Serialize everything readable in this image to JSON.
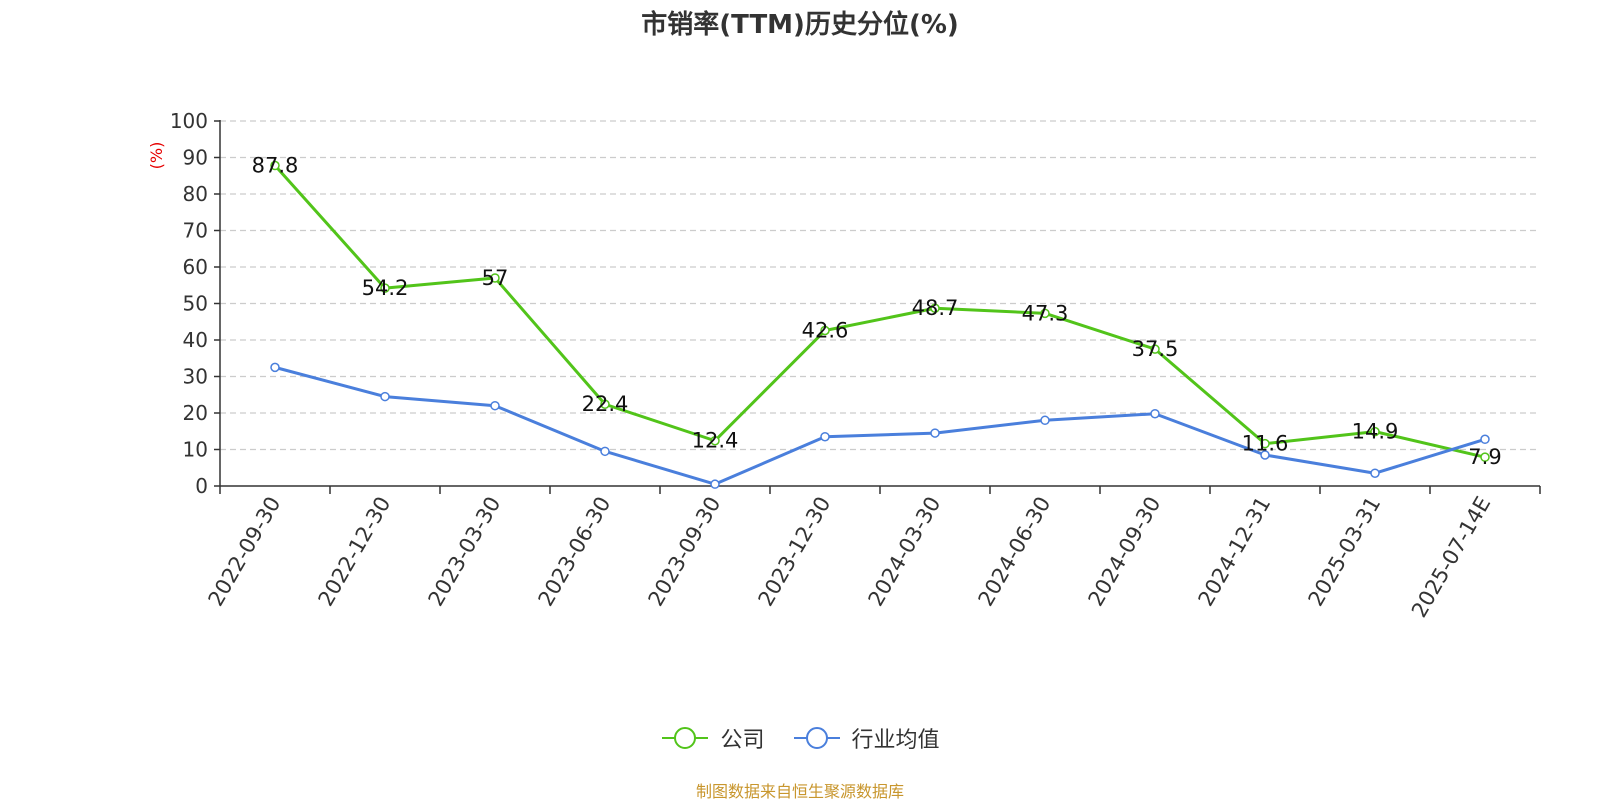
{
  "title": "市销率(TTM)历史分位(%)",
  "footer": "制图数据来自恒生聚源数据库",
  "chart_data": {
    "type": "line",
    "title": "市销率(TTM)历史分位(%)",
    "ylabel": "(%)",
    "xlabel": "",
    "ylim": [
      0,
      100
    ],
    "yticks": [
      0,
      10,
      20,
      30,
      40,
      50,
      60,
      70,
      80,
      90,
      100
    ],
    "grid": true,
    "legend_position": "bottom-center",
    "categories": [
      "2022-09-30",
      "2022-12-30",
      "2023-03-30",
      "2023-06-30",
      "2023-09-30",
      "2023-12-30",
      "2024-03-30",
      "2024-06-30",
      "2024-09-30",
      "2024-12-31",
      "2025-03-31",
      "2025-07-14E"
    ],
    "series": [
      {
        "name": "公司",
        "color": "#52c41a",
        "values": [
          87.8,
          54.2,
          57,
          22.4,
          12.4,
          42.6,
          48.7,
          47.3,
          37.5,
          11.6,
          14.9,
          7.9
        ],
        "labels": [
          "87.8",
          "54.2",
          "57",
          "22.4",
          "12.4",
          "42.6",
          "48.7",
          "47.3",
          "37.5",
          "11.6",
          "14.9",
          "7.9"
        ],
        "show_labels": true
      },
      {
        "name": "行业均值",
        "color": "#4a7fdc",
        "values": [
          32.5,
          24.5,
          22,
          9.5,
          0.5,
          13.5,
          14.5,
          18,
          19.8,
          8.5,
          3.5,
          12.8
        ],
        "show_labels": false
      }
    ]
  }
}
